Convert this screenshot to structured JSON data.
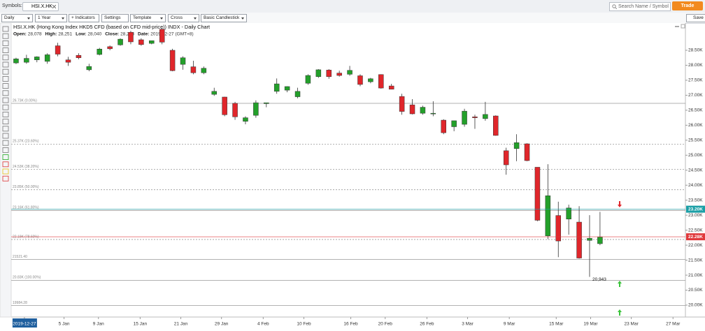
{
  "toolbar": {
    "symbols_label": "Symbols:",
    "symbol": "HSI.X.HK",
    "buttons": [
      "Daily",
      "1 Year",
      "+ Indicators",
      "Settings",
      "Template",
      "Cross",
      "Basic Candlestick"
    ],
    "search_placeholder": "Search Name / Symbol",
    "trade": "Trade",
    "save": "Save"
  },
  "chart_data": {
    "type": "candlestick",
    "title": "HSI.X.HK (Hong Kong Index HKD5 CFD (based on CFD mid-price)) INDX - Daily Chart",
    "info": [
      {
        "label": "Open:",
        "value": "28,078"
      },
      {
        "label": "High:",
        "value": "28,251"
      },
      {
        "label": "Low:",
        "value": "28,040"
      },
      {
        "label": "Close:",
        "value": "28,213"
      },
      {
        "label": "Date:",
        "value": "2019-12-27"
      }
    ],
    "timezone": "(GMT+8)",
    "up_color": "#23a02a",
    "down_color": "#e0262b",
    "open": [
      28078,
      28100,
      28180,
      28130,
      28650,
      28180,
      28330,
      27850,
      28360,
      28620,
      28680,
      29100,
      28850,
      28730,
      29200,
      28500,
      28030,
      27950,
      27750,
      27030,
      26940,
      26730,
      26130,
      26330,
      26720,
      27130,
      27170,
      26950,
      27400,
      27620,
      27840,
      27740,
      27700,
      27650,
      27450,
      27690,
      27310,
      26960,
      26680,
      26400,
      26390,
      26170,
      25950,
      26030,
      26280,
      26220,
      26310,
      25150,
      25220,
      25380,
      24600,
      22310,
      22990,
      22870,
      22770,
      22160,
      22050
    ],
    "high": [
      28251,
      28350,
      28300,
      28400,
      28750,
      28280,
      28400,
      28050,
      28580,
      28660,
      28900,
      29150,
      28900,
      28820,
      29250,
      28550,
      28300,
      28150,
      27960,
      27250,
      26950,
      26780,
      26300,
      26830,
      26750,
      27560,
      27300,
      27250,
      27700,
      27870,
      27870,
      27820,
      27980,
      27700,
      27580,
      27700,
      27380,
      27050,
      26870,
      26650,
      26800,
      26200,
      26150,
      26550,
      26350,
      26780,
      26330,
      25250,
      25700,
      25400,
      24600,
      24700,
      23450,
      23350,
      23300,
      23000,
      23110
    ],
    "low": [
      28040,
      28050,
      28100,
      28050,
      28300,
      27980,
      28200,
      27800,
      28330,
      28500,
      28650,
      28700,
      28650,
      28700,
      28700,
      27800,
      27850,
      27700,
      27700,
      26980,
      26300,
      26180,
      26030,
      26250,
      26600,
      27050,
      27100,
      26900,
      27350,
      27580,
      27550,
      27620,
      27650,
      27300,
      27400,
      27220,
      27200,
      26350,
      26360,
      26350,
      26300,
      25700,
      25800,
      25950,
      25880,
      26150,
      25650,
      24350,
      24800,
      24800,
      22800,
      22200,
      21600,
      22350,
      21550,
      20943,
      22000
    ],
    "close": [
      28213,
      28230,
      28280,
      28350,
      28370,
      28100,
      28250,
      27960,
      28540,
      28550,
      28870,
      28780,
      28690,
      28820,
      28770,
      27820,
      28250,
      27750,
      27900,
      27130,
      26350,
      26280,
      26250,
      26750,
      26750,
      27380,
      27290,
      27130,
      27660,
      27850,
      27620,
      27660,
      27830,
      27360,
      27550,
      27240,
      27200,
      26460,
      26380,
      26600,
      26400,
      25750,
      26150,
      26470,
      26250,
      26360,
      25660,
      24680,
      25420,
      24820,
      22830,
      23650,
      22140,
      23240,
      21570,
      22230,
      22270
    ],
    "xlim": [
      -1.54,
      64.19
    ],
    "xticks": [
      {
        "value": 0.8,
        "label": "2019-12-27"
      },
      {
        "value": 4.6,
        "label": "5 Jan"
      },
      {
        "value": 7.9,
        "label": "9 Jan"
      },
      {
        "value": 11.9,
        "label": "15 Jan"
      },
      {
        "value": 15.8,
        "label": "21 Jan"
      },
      {
        "value": 19.7,
        "label": "29 Jan"
      },
      {
        "value": 23.7,
        "label": "4 Feb"
      },
      {
        "value": 27.6,
        "label": "10 Feb"
      },
      {
        "value": 32.1,
        "label": "16 Feb"
      },
      {
        "value": 35.4,
        "label": "20 Feb"
      },
      {
        "value": 39.4,
        "label": "26 Feb"
      },
      {
        "value": 43.3,
        "label": "3 Mar"
      },
      {
        "value": 47.3,
        "label": "9 Mar"
      },
      {
        "value": 51.8,
        "label": "15 Mar"
      },
      {
        "value": 55.1,
        "label": "19 Mar"
      },
      {
        "value": 59.0,
        "label": "23 Mar"
      },
      {
        "value": 63.0,
        "label": "27 Mar"
      }
    ],
    "ylim": [
      19627,
      29408
    ],
    "yticks": [
      {
        "value": 28500,
        "label": "28.50K"
      },
      {
        "value": 28000,
        "label": "28.00K"
      },
      {
        "value": 27500,
        "label": "27.50K"
      },
      {
        "value": 27000,
        "label": "27.00K"
      },
      {
        "value": 26500,
        "label": "26.50K"
      },
      {
        "value": 26000,
        "label": "26.00K"
      },
      {
        "value": 25500,
        "label": "25.50K"
      },
      {
        "value": 25000,
        "label": "25.00K"
      },
      {
        "value": 24500,
        "label": "24.50K"
      },
      {
        "value": 24000,
        "label": "24.00K"
      },
      {
        "value": 23500,
        "label": "23.50K"
      },
      {
        "value": 23000,
        "label": "23.00K"
      },
      {
        "value": 22500,
        "label": "22.50K"
      },
      {
        "value": 22000,
        "label": "22.00K"
      },
      {
        "value": 21500,
        "label": "21.50K"
      },
      {
        "value": 21000,
        "label": "21.00K"
      },
      {
        "value": 20500,
        "label": "20.50K"
      },
      {
        "value": 20000,
        "label": "20.00K"
      }
    ],
    "levels": [
      {
        "value": 26730,
        "label": "26.73K (0.00%)",
        "dashed": false
      },
      {
        "value": 25370,
        "label": "25.37K (23.60%)",
        "dashed": true
      },
      {
        "value": 24530,
        "label": "24.53K (38.20%)",
        "dashed": true
      },
      {
        "value": 23850,
        "label": "23.85K (50.00%)",
        "dashed": true
      },
      {
        "value": 23160,
        "label": "23.16K (61.80%)",
        "dashed": false
      },
      {
        "value": 22190,
        "label": "22.19K (78.60%)",
        "dashed": true
      },
      {
        "value": 21521.4,
        "label": "21521.40",
        "dashed": false
      },
      {
        "value": 20830,
        "label": "20.83K (100.00%)",
        "dashed": false
      },
      {
        "value": 19984.28,
        "label": "19984.28",
        "dashed": false
      }
    ],
    "price_markers": [
      {
        "value": 23200,
        "label": "23.20K",
        "color": "#1b9fa6"
      },
      {
        "value": 22280,
        "label": "22.28K",
        "color": "#e0393c"
      }
    ],
    "annotation": {
      "text": "20,943",
      "value": 20943
    }
  }
}
